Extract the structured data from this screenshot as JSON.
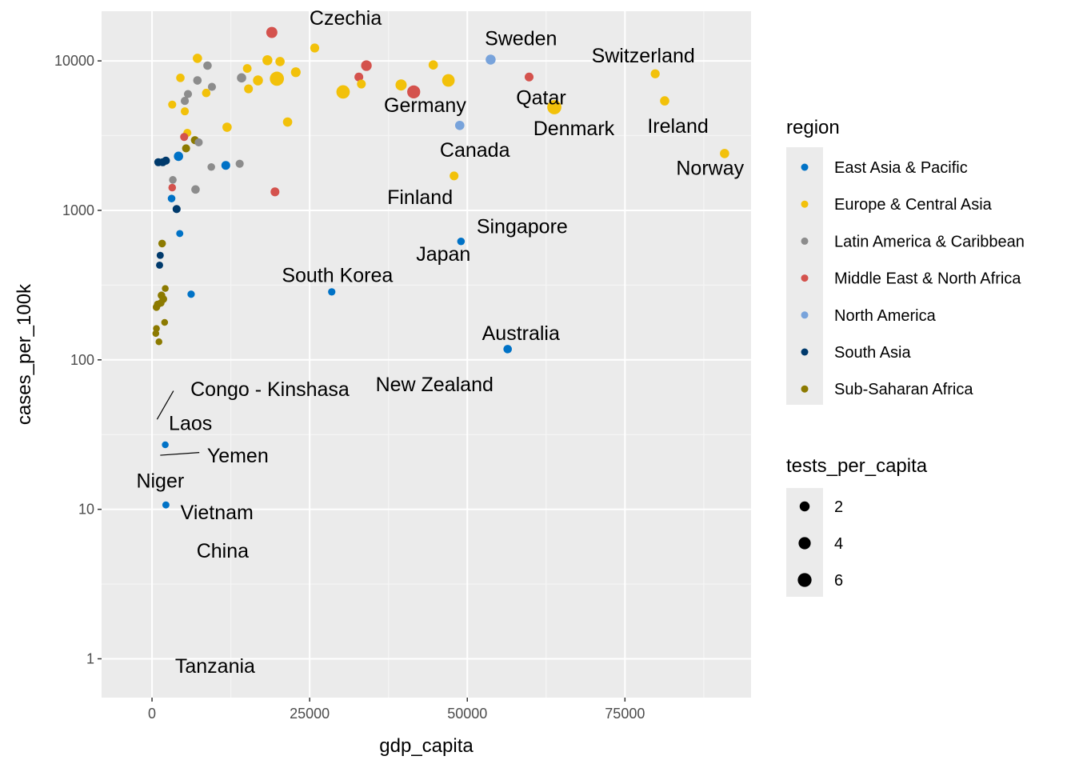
{
  "chart_data": {
    "type": "scatter",
    "xlabel": "gdp_capita",
    "ylabel": "cases_per_100k",
    "xlim": [
      -8000,
      95000
    ],
    "ylim": [
      0.55,
      21500
    ],
    "y_scale": "log10",
    "grid": true,
    "x_ticks": [
      {
        "value": 0,
        "label": "0"
      },
      {
        "value": 25000,
        "label": "25000"
      },
      {
        "value": 50000,
        "label": "50000"
      },
      {
        "value": 75000,
        "label": "75000"
      }
    ],
    "y_ticks": [
      {
        "value": 1,
        "label": "1"
      },
      {
        "value": 10,
        "label": "10"
      },
      {
        "value": 100,
        "label": "100"
      },
      {
        "value": 1000,
        "label": "1000"
      },
      {
        "value": 10000,
        "label": "10000"
      }
    ],
    "regions": [
      {
        "name": "East Asia & Pacific",
        "color": "#0072C6"
      },
      {
        "name": "Europe & Central Asia",
        "color": "#F2C10A"
      },
      {
        "name": "Latin America & Caribbean",
        "color": "#8C8C8C"
      },
      {
        "name": "Middle East & North Africa",
        "color": "#D4524D"
      },
      {
        "name": "North America",
        "color": "#78A3DB"
      },
      {
        "name": "South Asia",
        "color": "#003A6C"
      },
      {
        "name": "Sub-Saharan Africa",
        "color": "#8C7A00"
      }
    ],
    "legend": {
      "position": "right",
      "color_title": "region",
      "size_title": "tests_per_capita",
      "size_breaks": [
        {
          "value": 2,
          "label": "2"
        },
        {
          "value": 4,
          "label": "4"
        },
        {
          "value": 6,
          "label": "6"
        }
      ]
    },
    "points": [
      {
        "x": 19000,
        "y": 15500,
        "region": 3,
        "tests": 3.0
      },
      {
        "x": 25800,
        "y": 12200,
        "region": 1,
        "tests": 1.3
      },
      {
        "x": 7200,
        "y": 10400,
        "region": 1,
        "tests": 1.5
      },
      {
        "x": 18300,
        "y": 10100,
        "region": 1,
        "tests": 2.0
      },
      {
        "x": 20300,
        "y": 9900,
        "region": 1,
        "tests": 1.5
      },
      {
        "x": 15100,
        "y": 8900,
        "region": 1,
        "tests": 1.1
      },
      {
        "x": 8800,
        "y": 9300,
        "region": 2,
        "tests": 1.0
      },
      {
        "x": 34000,
        "y": 9300,
        "region": 3,
        "tests": 2.5
      },
      {
        "x": 44600,
        "y": 9400,
        "region": 1,
        "tests": 1.5
      },
      {
        "x": 53700,
        "y": 10200,
        "region": 4,
        "tests": 2.0
      },
      {
        "x": 22800,
        "y": 8400,
        "region": 1,
        "tests": 1.8
      },
      {
        "x": 19800,
        "y": 7600,
        "region": 1,
        "tests": 6.5
      },
      {
        "x": 16800,
        "y": 7400,
        "region": 1,
        "tests": 2.0
      },
      {
        "x": 4500,
        "y": 7700,
        "region": 1,
        "tests": 1.0
      },
      {
        "x": 7200,
        "y": 7400,
        "region": 2,
        "tests": 1.0
      },
      {
        "x": 14200,
        "y": 7700,
        "region": 2,
        "tests": 1.5
      },
      {
        "x": 32800,
        "y": 7800,
        "region": 3,
        "tests": 1.2
      },
      {
        "x": 59800,
        "y": 7800,
        "region": 3,
        "tests": 1.2
      },
      {
        "x": 79800,
        "y": 8200,
        "region": 1,
        "tests": 1.3
      },
      {
        "x": 47000,
        "y": 7400,
        "region": 1,
        "tests": 4.5
      },
      {
        "x": 39500,
        "y": 6900,
        "region": 1,
        "tests": 3.0
      },
      {
        "x": 41500,
        "y": 6200,
        "region": 3,
        "tests": 5.0
      },
      {
        "x": 30300,
        "y": 6200,
        "region": 1,
        "tests": 5.5
      },
      {
        "x": 33200,
        "y": 7000,
        "region": 1,
        "tests": 1.2
      },
      {
        "x": 15300,
        "y": 6500,
        "region": 1,
        "tests": 1.2
      },
      {
        "x": 9500,
        "y": 6700,
        "region": 2,
        "tests": 0.8
      },
      {
        "x": 5700,
        "y": 6000,
        "region": 2,
        "tests": 0.8
      },
      {
        "x": 5200,
        "y": 5400,
        "region": 2,
        "tests": 0.8
      },
      {
        "x": 8600,
        "y": 6100,
        "region": 1,
        "tests": 1.0
      },
      {
        "x": 81300,
        "y": 5400,
        "region": 1,
        "tests": 1.5
      },
      {
        "x": 63800,
        "y": 4900,
        "region": 1,
        "tests": 6.5
      },
      {
        "x": 3200,
        "y": 5100,
        "region": 1,
        "tests": 0.8
      },
      {
        "x": 5200,
        "y": 4600,
        "region": 1,
        "tests": 0.8
      },
      {
        "x": 48800,
        "y": 3700,
        "region": 4,
        "tests": 1.5
      },
      {
        "x": 21500,
        "y": 3900,
        "region": 1,
        "tests": 1.5
      },
      {
        "x": 11900,
        "y": 3600,
        "region": 1,
        "tests": 1.5
      },
      {
        "x": 5600,
        "y": 3300,
        "region": 1,
        "tests": 0.8
      },
      {
        "x": 5100,
        "y": 3100,
        "region": 3,
        "tests": 0.8
      },
      {
        "x": 6800,
        "y": 2950,
        "region": 6,
        "tests": 0.8
      },
      {
        "x": 7400,
        "y": 2850,
        "region": 2,
        "tests": 0.8
      },
      {
        "x": 5400,
        "y": 2600,
        "region": 6,
        "tests": 0.8
      },
      {
        "x": 90800,
        "y": 2400,
        "region": 1,
        "tests": 1.5
      },
      {
        "x": 4200,
        "y": 2300,
        "region": 0,
        "tests": 1.5
      },
      {
        "x": 2200,
        "y": 2150,
        "region": 5,
        "tests": 0.8
      },
      {
        "x": 1000,
        "y": 2100,
        "region": 5,
        "tests": 0.8
      },
      {
        "x": 1700,
        "y": 2100,
        "region": 5,
        "tests": 0.8
      },
      {
        "x": 11700,
        "y": 2000,
        "region": 0,
        "tests": 1.2
      },
      {
        "x": 13900,
        "y": 2050,
        "region": 2,
        "tests": 0.8
      },
      {
        "x": 9400,
        "y": 1950,
        "region": 2,
        "tests": 0.6
      },
      {
        "x": 47900,
        "y": 1700,
        "region": 1,
        "tests": 1.2
      },
      {
        "x": 3300,
        "y": 1600,
        "region": 2,
        "tests": 0.6
      },
      {
        "x": 3200,
        "y": 1420,
        "region": 3,
        "tests": 0.6
      },
      {
        "x": 6900,
        "y": 1380,
        "region": 2,
        "tests": 1.0
      },
      {
        "x": 19500,
        "y": 1330,
        "region": 3,
        "tests": 1.2
      },
      {
        "x": 3100,
        "y": 1200,
        "region": 0,
        "tests": 0.6
      },
      {
        "x": 3900,
        "y": 1020,
        "region": 5,
        "tests": 0.8
      },
      {
        "x": 4400,
        "y": 700,
        "region": 0,
        "tests": 0.4
      },
      {
        "x": 49000,
        "y": 620,
        "region": 0,
        "tests": 0.6
      },
      {
        "x": 1600,
        "y": 600,
        "region": 6,
        "tests": 0.6
      },
      {
        "x": 1300,
        "y": 500,
        "region": 5,
        "tests": 0.4
      },
      {
        "x": 1200,
        "y": 430,
        "region": 5,
        "tests": 0.4
      },
      {
        "x": 2100,
        "y": 300,
        "region": 6,
        "tests": 0.3
      },
      {
        "x": 6200,
        "y": 275,
        "region": 0,
        "tests": 0.5
      },
      {
        "x": 28500,
        "y": 285,
        "region": 0,
        "tests": 0.5
      },
      {
        "x": 1500,
        "y": 270,
        "region": 6,
        "tests": 0.6
      },
      {
        "x": 1800,
        "y": 255,
        "region": 6,
        "tests": 0.6
      },
      {
        "x": 1400,
        "y": 240,
        "region": 6,
        "tests": 0.5
      },
      {
        "x": 900,
        "y": 235,
        "region": 6,
        "tests": 0.6
      },
      {
        "x": 700,
        "y": 225,
        "region": 6,
        "tests": 0.5
      },
      {
        "x": 2000,
        "y": 178,
        "region": 6,
        "tests": 0.3
      },
      {
        "x": 700,
        "y": 162,
        "region": 6,
        "tests": 0.3
      },
      {
        "x": 600,
        "y": 150,
        "region": 6,
        "tests": 0.3
      },
      {
        "x": 1100,
        "y": 132,
        "region": 6,
        "tests": 0.3
      },
      {
        "x": 56400,
        "y": 118,
        "region": 0,
        "tests": 1.0
      },
      {
        "x": 2100,
        "y": 27,
        "region": 0,
        "tests": 0.3
      },
      {
        "x": 2200,
        "y": 10.7,
        "region": 0,
        "tests": 0.4
      }
    ],
    "annotations": [
      {
        "text": "Czechia",
        "x": 30700,
        "y": 19500
      },
      {
        "text": "Sweden",
        "x": 58500,
        "y": 14200
      },
      {
        "text": "Switzerland",
        "x": 77900,
        "y": 10900
      },
      {
        "text": "Qatar",
        "x": 61700,
        "y": 5700
      },
      {
        "text": "Germany",
        "x": 43300,
        "y": 5100
      },
      {
        "text": "Denmark",
        "x": 66900,
        "y": 3550
      },
      {
        "text": "Ireland",
        "x": 83400,
        "y": 3700
      },
      {
        "text": "Canada",
        "x": 51200,
        "y": 2550
      },
      {
        "text": "Norway",
        "x": 88500,
        "y": 1930
      },
      {
        "text": "Finland",
        "x": 42500,
        "y": 1230
      },
      {
        "text": "Singapore",
        "x": 58700,
        "y": 785
      },
      {
        "text": "Japan",
        "x": 46200,
        "y": 515
      },
      {
        "text": "South Korea",
        "x": 29400,
        "y": 370
      },
      {
        "text": "Australia",
        "x": 58500,
        "y": 152
      },
      {
        "text": "New Zealand",
        "x": 44800,
        "y": 69
      },
      {
        "text": "Congo - Kinshasa",
        "x": 18700,
        "y": 64
      },
      {
        "text": "Laos",
        "x": 6100,
        "y": 38
      },
      {
        "text": "Yemen",
        "x": 13600,
        "y": 23
      },
      {
        "text": "Niger",
        "x": 1300,
        "y": 15.6
      },
      {
        "text": "Vietnam",
        "x": 10300,
        "y": 9.6
      },
      {
        "text": "China",
        "x": 11200,
        "y": 5.3
      },
      {
        "text": "Tanzania",
        "x": 10000,
        "y": 0.9
      }
    ],
    "leader_lines": [
      {
        "x1": 800,
        "y1": 40,
        "x2": 3400,
        "y2": 62
      },
      {
        "x1": 1300,
        "y1": 23,
        "x2": 7500,
        "y2": 24
      }
    ]
  }
}
